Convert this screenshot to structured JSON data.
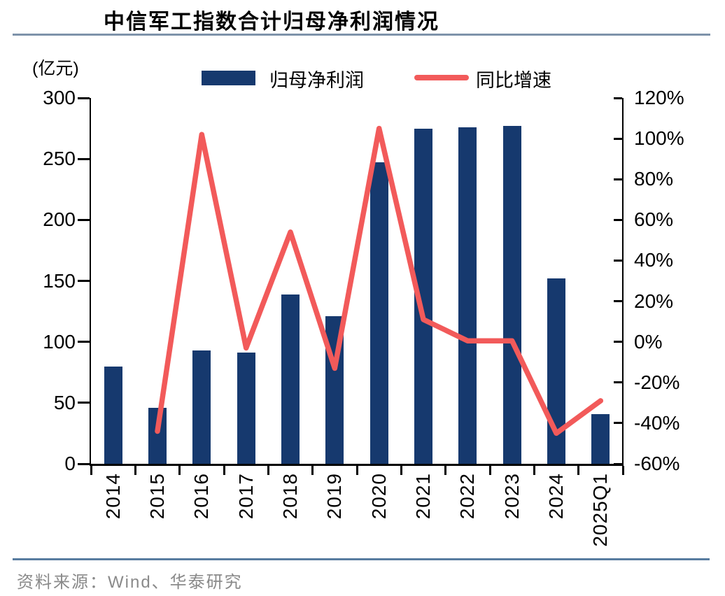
{
  "title": "中信军工指数合计归母净利润情况",
  "unit_label": "(亿元)",
  "legend": {
    "bar_label": "归母净利润",
    "line_label": "同比增速"
  },
  "source": "资料来源：Wind、华泰研究",
  "colors": {
    "bar": "#16396E",
    "line": "#F25A5A",
    "title_rule": "#7E93AA",
    "footer_rule": "#587CA0",
    "source_text": "#8A8A8A",
    "axis": "#000000"
  },
  "chart_data": {
    "type": "bar+line combo",
    "title": "中信军工指数合计归母净利润情况",
    "categories": [
      "2014",
      "2015",
      "2016",
      "2017",
      "2018",
      "2019",
      "2020",
      "2021",
      "2022",
      "2023",
      "2024",
      "2025Q1"
    ],
    "series": [
      {
        "name": "归母净利润",
        "type": "bar",
        "axis": "left",
        "unit": "亿元",
        "values": [
          80,
          46,
          93,
          91,
          139,
          121,
          247,
          275,
          276,
          277,
          152,
          41
        ]
      },
      {
        "name": "同比增速",
        "type": "line",
        "axis": "right",
        "unit": "%",
        "values": [
          null,
          -44,
          102,
          -3,
          54,
          -13,
          105,
          11,
          0.5,
          0.5,
          -45,
          -29
        ]
      }
    ],
    "left_axis": {
      "label": "(亿元)",
      "min": 0,
      "max": 300,
      "tick_step": 50,
      "ticks": [
        300,
        250,
        200,
        150,
        100,
        50,
        0
      ]
    },
    "right_axis": {
      "min": -60,
      "max": 120,
      "tick_step": 20,
      "ticks": [
        "120%",
        "100%",
        "80%",
        "60%",
        "40%",
        "20%",
        "0%",
        "-20%",
        "-40%",
        "-60%"
      ]
    },
    "grid": false,
    "legend_position": "top-center",
    "x_tick_label_rotation": -90
  }
}
